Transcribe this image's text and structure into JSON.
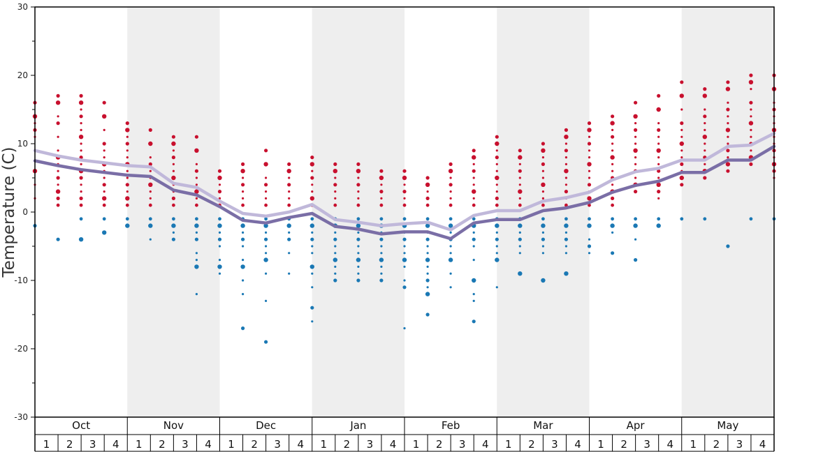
{
  "chart_data": {
    "type": "scatter",
    "ylabel": "Temperature (C)",
    "ylim": [
      -30,
      30
    ],
    "yticks": [
      -30,
      -20,
      -10,
      0,
      10,
      20,
      30
    ],
    "months": [
      "Oct",
      "Nov",
      "Dec",
      "Jan",
      "Feb",
      "Mar",
      "Apr",
      "May"
    ],
    "weeks": [
      "1",
      "2",
      "3",
      "4"
    ],
    "grid": false,
    "colors": {
      "warm_dots": "#c8102e",
      "cold_dots": "#1a78b4",
      "dark_line": "#7a6ea6",
      "light_line": "#c0b8da",
      "shade": "#eeeeee"
    },
    "series": [
      {
        "values": [
          7.5,
          6.8,
          6.2,
          5.8,
          5.4,
          5.2,
          3.2,
          2.5,
          0.8,
          -1.2,
          -1.6,
          -0.8,
          -0.2,
          -2.1,
          -2.5,
          -3.2,
          -2.9,
          -2.9,
          -3.9,
          -1.6,
          -1.1,
          -1.1,
          0.2,
          0.6,
          1.4,
          2.9,
          3.9,
          4.5,
          5.8,
          5.8,
          7.6,
          7.6,
          9.6
        ]
      },
      {
        "values": [
          9,
          8.2,
          7.6,
          7.2,
          6.8,
          6.6,
          4.2,
          3.6,
          1.6,
          -0.2,
          -0.6,
          0,
          1.1,
          -1.1,
          -1.5,
          -2,
          -1.7,
          -1.5,
          -2.6,
          -0.5,
          0.2,
          0.2,
          1.6,
          2.1,
          2.9,
          4.7,
          5.9,
          6.4,
          7.6,
          7.6,
          9.6,
          9.8,
          11.5
        ]
      }
    ],
    "dots": {
      "above_zero": [
        [
          16,
          14,
          13,
          12,
          11,
          9,
          6,
          4,
          2
        ],
        [
          17,
          16,
          14,
          13,
          11,
          9,
          8,
          7,
          6,
          5,
          4,
          3,
          2,
          1
        ],
        [
          17,
          16,
          15,
          14,
          13,
          12,
          11,
          10,
          9,
          8,
          7,
          6,
          5,
          4,
          3,
          2,
          1
        ],
        [
          16,
          14,
          12,
          10,
          9,
          8,
          7,
          6,
          5,
          4,
          3,
          2,
          1
        ],
        [
          13,
          12,
          11,
          10,
          9,
          8,
          7,
          6,
          5,
          4,
          3,
          2,
          1
        ],
        [
          12,
          10,
          8,
          7,
          6,
          5,
          4,
          3,
          2,
          1
        ],
        [
          11,
          10,
          9,
          8,
          7,
          6,
          5,
          4,
          3,
          2,
          1
        ],
        [
          11,
          9,
          7,
          6,
          5,
          4,
          3,
          2,
          1
        ],
        [
          6,
          5,
          4,
          3,
          2,
          1
        ],
        [
          7,
          6,
          5,
          4,
          3,
          2,
          1
        ],
        [
          9,
          7,
          5,
          4,
          3,
          2,
          1
        ],
        [
          7,
          6,
          5,
          4,
          3,
          2,
          1
        ],
        [
          8,
          7,
          6,
          5,
          4,
          3,
          2,
          1
        ],
        [
          7,
          6,
          5,
          4,
          3,
          2,
          1
        ],
        [
          7,
          6,
          5,
          4,
          3,
          2,
          1
        ],
        [
          6,
          5,
          4,
          3,
          2,
          1
        ],
        [
          6,
          5,
          4,
          3,
          2,
          1
        ],
        [
          5,
          4,
          3,
          2,
          1
        ],
        [
          7,
          6,
          5,
          4,
          3,
          2,
          1
        ],
        [
          9,
          8,
          7,
          6,
          5,
          4,
          3,
          2,
          1
        ],
        [
          11,
          10,
          9,
          8,
          7,
          6,
          5,
          4,
          3,
          2,
          1
        ],
        [
          9,
          8,
          7,
          6,
          5,
          4,
          3,
          2,
          1
        ],
        [
          10,
          9,
          8,
          7,
          6,
          5,
          4,
          3,
          2,
          1
        ],
        [
          12,
          11,
          10,
          9,
          8,
          7,
          6,
          5,
          4,
          3,
          2,
          1
        ],
        [
          13,
          12,
          11,
          10,
          9,
          8,
          7,
          6,
          5,
          4,
          3,
          2,
          1
        ],
        [
          14,
          13,
          12,
          11,
          10,
          9,
          8,
          7,
          6,
          5,
          4,
          3,
          2,
          1
        ],
        [
          16,
          14,
          13,
          12,
          11,
          10,
          9,
          8,
          7,
          6,
          5,
          4,
          3
        ],
        [
          17,
          15,
          13,
          12,
          11,
          10,
          9,
          8,
          7,
          6,
          5,
          4,
          3,
          2
        ],
        [
          19,
          17,
          15,
          13,
          12,
          11,
          10,
          9,
          8,
          7,
          6,
          5,
          4
        ],
        [
          18,
          17,
          15,
          14,
          13,
          12,
          11,
          10,
          9,
          8,
          7,
          6,
          5
        ],
        [
          19,
          18,
          16,
          15,
          14,
          13,
          12,
          11,
          10,
          9,
          8,
          7,
          6
        ],
        [
          20,
          19,
          18,
          16,
          15,
          14,
          13,
          12,
          11,
          10,
          9,
          8,
          7
        ],
        [
          20,
          18,
          16,
          15,
          14,
          13,
          12,
          11,
          10,
          9,
          8,
          7,
          6,
          5
        ]
      ],
      "below_zero": [
        [
          -2
        ],
        [
          -4
        ],
        [
          -1,
          -4
        ],
        [
          -1,
          -3
        ],
        [
          -1,
          -2
        ],
        [
          -1,
          -2,
          -4
        ],
        [
          -1,
          -2,
          -3,
          -4
        ],
        [
          -1,
          -2,
          -3,
          -4,
          -6,
          -7,
          -8,
          -12
        ],
        [
          -1,
          -2,
          -3,
          -4,
          -5,
          -7,
          -8,
          -9
        ],
        [
          -1,
          -2,
          -3,
          -4,
          -5,
          -7,
          -8,
          -10,
          -12,
          -17
        ],
        [
          -1,
          -2,
          -3,
          -4,
          -5,
          -6,
          -7,
          -9,
          -13,
          -19
        ],
        [
          -1,
          -2,
          -3,
          -4,
          -6,
          -9
        ],
        [
          -1,
          -2,
          -3,
          -4,
          -5,
          -6,
          -8,
          -9,
          -11,
          -14,
          -16
        ],
        [
          -1,
          -2,
          -3,
          -4,
          -5,
          -6,
          -7,
          -8,
          -9,
          -10
        ],
        [
          -1,
          -2,
          -3,
          -4,
          -5,
          -6,
          -7,
          -8,
          -9,
          -10
        ],
        [
          -1,
          -2,
          -3,
          -4,
          -5,
          -6,
          -7,
          -8,
          -9,
          -10
        ],
        [
          -1,
          -2,
          -3,
          -4,
          -5,
          -6,
          -7,
          -8,
          -10,
          -11,
          -17
        ],
        [
          -1,
          -2,
          -3,
          -4,
          -5,
          -6,
          -7,
          -8,
          -9,
          -10,
          -11,
          -12,
          -15
        ],
        [
          -1,
          -2,
          -3,
          -4,
          -5,
          -6,
          -7,
          -9,
          -11
        ],
        [
          -1,
          -2,
          -3,
          -4,
          -5,
          -7,
          -10,
          -12,
          -13,
          -16
        ],
        [
          -1,
          -2,
          -3,
          -4,
          -5,
          -6,
          -7,
          -11
        ],
        [
          -1,
          -2,
          -3,
          -4,
          -5,
          -6,
          -9
        ],
        [
          -1,
          -2,
          -3,
          -4,
          -5,
          -6,
          -10
        ],
        [
          -1,
          -2,
          -3,
          -4,
          -5,
          -6,
          -9
        ],
        [
          -1,
          -2,
          -4,
          -5,
          -6
        ],
        [
          -1,
          -2,
          -3,
          -6
        ],
        [
          -1,
          -2,
          -4,
          -7
        ],
        [
          -1,
          -2
        ],
        [
          -1
        ],
        [
          -1
        ],
        [
          -5
        ],
        [
          -1
        ],
        [
          -1
        ]
      ]
    }
  }
}
